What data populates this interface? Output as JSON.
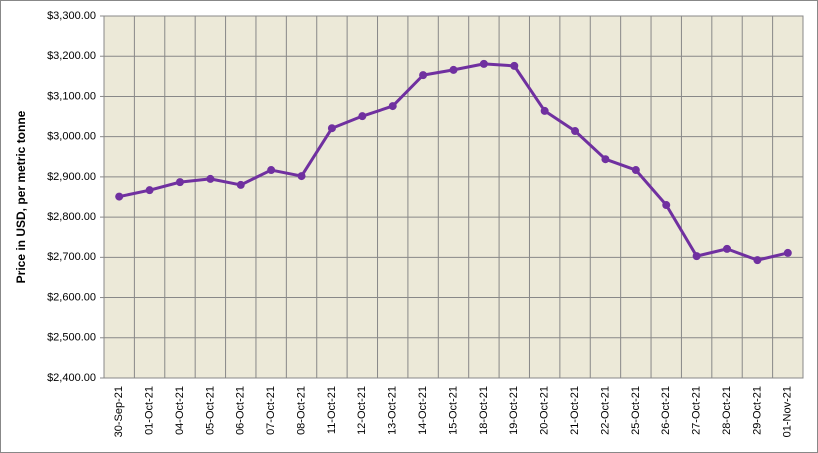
{
  "chart_data": {
    "type": "line",
    "y_label": "Price in USD, per metric tonne",
    "categories": [
      "30-Sep-21",
      "01-Oct-21",
      "04-Oct-21",
      "05-Oct-21",
      "06-Oct-21",
      "07-Oct-21",
      "08-Oct-21",
      "11-Oct-21",
      "12-Oct-21",
      "13-Oct-21",
      "14-Oct-21",
      "15-Oct-21",
      "18-Oct-21",
      "19-Oct-21",
      "20-Oct-21",
      "21-Oct-21",
      "22-Oct-21",
      "25-Oct-21",
      "26-Oct-21",
      "27-Oct-21",
      "28-Oct-21",
      "29-Oct-21",
      "01-Nov-21"
    ],
    "values": [
      2851,
      2867,
      2887,
      2895,
      2880,
      2917,
      2902,
      3021,
      3051,
      3076,
      3153,
      3166,
      3181,
      3176,
      3064,
      3014,
      2944,
      2917,
      2830,
      2703,
      2721,
      2693,
      2711
    ],
    "color": "#7030a0",
    "ylim": [
      2400,
      3300
    ],
    "yticks": [
      {
        "value": 2400,
        "label": "$2,400.00"
      },
      {
        "value": 2500,
        "label": "$2,500.00"
      },
      {
        "value": 2600,
        "label": "$2,600.00"
      },
      {
        "value": 2700,
        "label": "$2,700.00"
      },
      {
        "value": 2800,
        "label": "$2,800.00"
      },
      {
        "value": 2900,
        "label": "$2,900.00"
      },
      {
        "value": 3000,
        "label": "$3,000.00"
      },
      {
        "value": 3100,
        "label": "$3,100.00"
      },
      {
        "value": 3200,
        "label": "$3,200.00"
      },
      {
        "value": 3300,
        "label": "$3,300.00"
      }
    ],
    "grid": true
  }
}
